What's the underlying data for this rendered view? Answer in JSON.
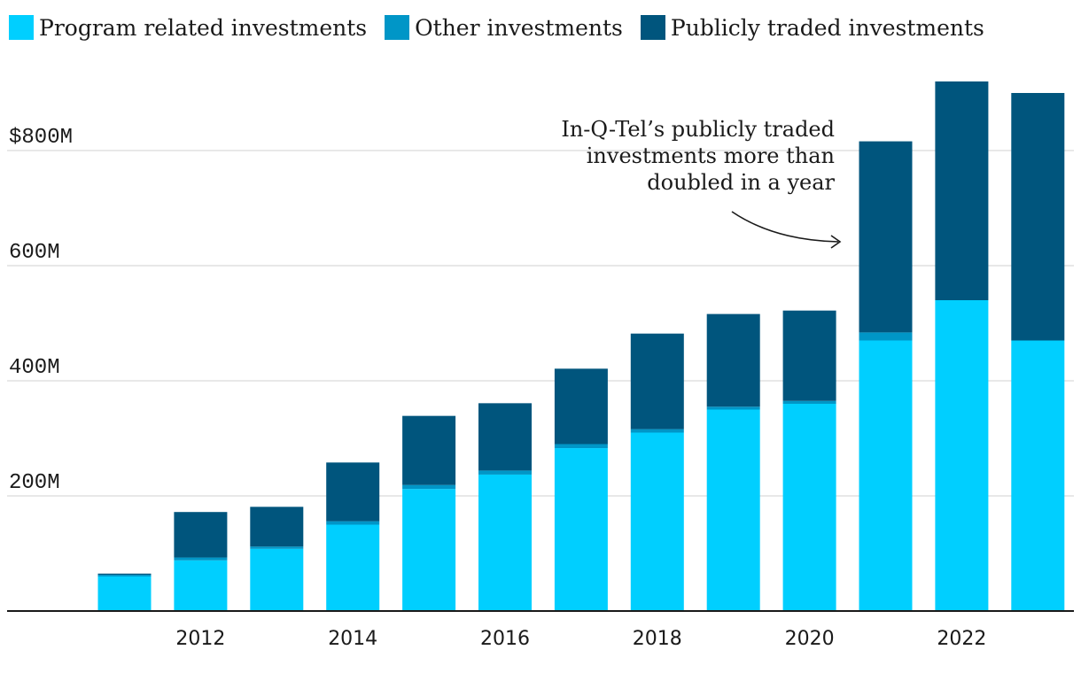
{
  "chart_data": {
    "type": "bar",
    "stacked": true,
    "title": "",
    "xlabel": "",
    "ylabel": "",
    "ylim": [
      0,
      920
    ],
    "legend_position": "top-left",
    "grid": true,
    "categories": [
      "2011",
      "2012",
      "2013",
      "2014",
      "2015",
      "2016",
      "2017",
      "2018",
      "2019",
      "2020",
      "2021",
      "2022",
      "2023"
    ],
    "x_tick_labels": [
      "2012",
      "2014",
      "2016",
      "2018",
      "2020",
      "2022"
    ],
    "y_ticks": [
      {
        "value": 200,
        "label": "200M"
      },
      {
        "value": 400,
        "label": "400M"
      },
      {
        "value": 600,
        "label": "600M"
      },
      {
        "value": 800,
        "label": "$800M"
      }
    ],
    "series": [
      {
        "name": "Program related investments",
        "color": "#00cfff",
        "values": [
          60,
          88,
          108,
          150,
          212,
          237,
          283,
          310,
          350,
          360,
          470,
          540,
          470
        ]
      },
      {
        "name": "Other investments",
        "color": "#0096c7",
        "values": [
          3,
          5,
          4,
          6,
          7,
          7,
          7,
          6,
          5,
          5,
          14,
          0,
          0
        ]
      },
      {
        "name": "Publicly traded investments",
        "color": "#00557d",
        "values": [
          2,
          79,
          69,
          102,
          120,
          117,
          131,
          166,
          161,
          157,
          332,
          380,
          430
        ]
      }
    ],
    "annotation": {
      "lines": [
        "In-Q-Tel’s publicly traded",
        "investments more than",
        "doubled in a year"
      ]
    }
  }
}
